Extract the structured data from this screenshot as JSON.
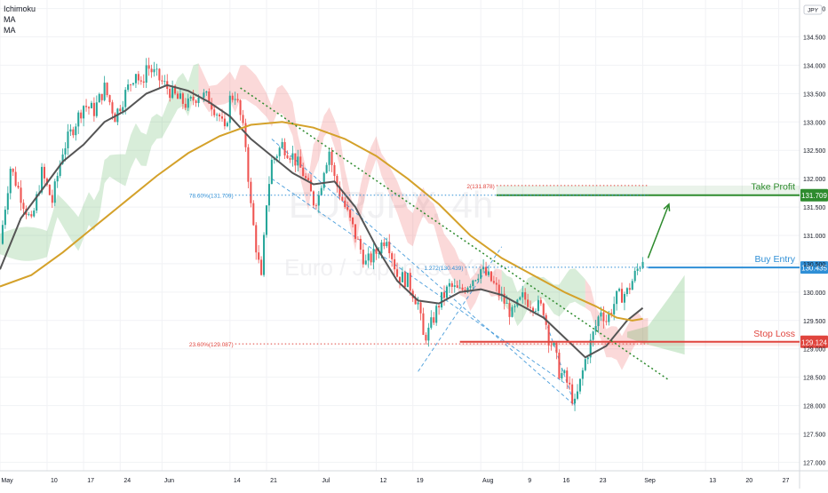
{
  "indicators": [
    "Ichimoku",
    "MA",
    "MA"
  ],
  "currency_badge": "JPY",
  "watermark": {
    "symbol": "EURJPY, 4h",
    "name": "Euro / Japanese Yen"
  },
  "chart_data": {
    "type": "candlestick",
    "y_axis": {
      "min": 126.85,
      "max": 135.15,
      "ticks": [
        127.0,
        127.5,
        128.0,
        128.5,
        129.0,
        129.5,
        130.0,
        130.5,
        131.0,
        131.5,
        132.0,
        132.5,
        133.0,
        133.5,
        134.0,
        134.5,
        135.0
      ],
      "tick_labels": [
        "127.000",
        "127.500",
        "128.000",
        "128.500",
        "129.000",
        "129.500",
        "130.000",
        "130.500",
        "131.000",
        "131.500",
        "132.000",
        "132.500",
        "133.000",
        "133.500",
        "134.000",
        "134.500",
        "135.000"
      ]
    },
    "x_axis": {
      "range_days": [
        0,
        153
      ],
      "ticks": [
        {
          "day": 0,
          "label": "May"
        },
        {
          "day": 9,
          "label": "10"
        },
        {
          "day": 16,
          "label": "17"
        },
        {
          "day": 23,
          "label": "24"
        },
        {
          "day": 31,
          "label": "Jun"
        },
        {
          "day": 44,
          "label": "14"
        },
        {
          "day": 51,
          "label": "21"
        },
        {
          "day": 61,
          "label": "Jul"
        },
        {
          "day": 72,
          "label": "12"
        },
        {
          "day": 79,
          "label": "19"
        },
        {
          "day": 92,
          "label": "Aug"
        },
        {
          "day": 100,
          "label": "9"
        },
        {
          "day": 107,
          "label": "16"
        },
        {
          "day": 114,
          "label": "23"
        },
        {
          "day": 123,
          "label": "Sep"
        },
        {
          "day": 135,
          "label": "13"
        },
        {
          "day": 142,
          "label": "20"
        },
        {
          "day": 149,
          "label": "27"
        }
      ]
    },
    "price_path": [
      [
        0,
        130.85
      ],
      [
        2,
        132.2
      ],
      [
        4,
        131.7
      ],
      [
        6,
        131.2
      ],
      [
        8,
        132.1
      ],
      [
        10,
        131.6
      ],
      [
        12,
        132.5
      ],
      [
        14,
        132.9
      ],
      [
        16,
        133.3
      ],
      [
        18,
        133.2
      ],
      [
        20,
        133.6
      ],
      [
        22,
        133.1
      ],
      [
        24,
        133.5
      ],
      [
        26,
        133.9
      ],
      [
        27,
        133.6
      ],
      [
        28,
        134.0
      ],
      [
        30,
        133.8
      ],
      [
        32,
        133.6
      ],
      [
        34,
        133.4
      ],
      [
        36,
        133.3
      ],
      [
        38,
        133.5
      ],
      [
        40,
        133.4
      ],
      [
        42,
        133.1
      ],
      [
        43,
        132.8
      ],
      [
        44,
        133.4
      ],
      [
        45,
        133.5
      ],
      [
        46,
        133.1
      ],
      [
        47,
        132.6
      ],
      [
        48,
        131.5
      ],
      [
        49,
        130.8
      ],
      [
        50,
        130.2
      ],
      [
        51,
        131.6
      ],
      [
        52,
        132.3
      ],
      [
        54,
        132.6
      ],
      [
        56,
        132.4
      ],
      [
        58,
        132.1
      ],
      [
        60,
        131.6
      ],
      [
        61,
        131.7
      ],
      [
        62,
        132.2
      ],
      [
        63,
        132.5
      ],
      [
        64,
        132.0
      ],
      [
        66,
        131.5
      ],
      [
        68,
        131.0
      ],
      [
        70,
        130.5
      ],
      [
        72,
        130.7
      ],
      [
        74,
        131.0
      ],
      [
        76,
        130.3
      ],
      [
        78,
        130.2
      ],
      [
        80,
        129.8
      ],
      [
        81,
        129.2
      ],
      [
        82,
        129.3
      ],
      [
        84,
        129.8
      ],
      [
        86,
        130.1
      ],
      [
        88,
        130.0
      ],
      [
        90,
        130.2
      ],
      [
        92,
        130.4
      ],
      [
        94,
        130.2
      ],
      [
        96,
        129.9
      ],
      [
        98,
        129.6
      ],
      [
        100,
        129.9
      ],
      [
        102,
        129.8
      ],
      [
        104,
        129.7
      ],
      [
        105,
        129.2
      ],
      [
        106,
        129.0
      ],
      [
        107,
        128.6
      ],
      [
        108,
        128.5
      ],
      [
        109,
        128.3
      ],
      [
        110,
        128.0
      ],
      [
        111,
        128.4
      ],
      [
        112,
        128.8
      ],
      [
        113,
        129.1
      ],
      [
        114,
        129.4
      ],
      [
        115,
        129.7
      ],
      [
        116,
        129.5
      ],
      [
        118,
        129.9
      ],
      [
        120,
        130.0
      ],
      [
        121,
        130.2
      ],
      [
        122,
        130.4
      ],
      [
        123,
        130.6
      ]
    ],
    "moving_averages": [
      {
        "name": "MA",
        "color": "#555555",
        "path": [
          [
            0,
            130.4
          ],
          [
            4,
            131.3
          ],
          [
            8,
            131.8
          ],
          [
            12,
            132.3
          ],
          [
            16,
            132.6
          ],
          [
            20,
            133.0
          ],
          [
            24,
            133.2
          ],
          [
            28,
            133.5
          ],
          [
            32,
            133.65
          ],
          [
            36,
            133.55
          ],
          [
            40,
            133.35
          ],
          [
            44,
            133.1
          ],
          [
            48,
            132.7
          ],
          [
            52,
            132.4
          ],
          [
            56,
            132.1
          ],
          [
            60,
            131.9
          ],
          [
            64,
            131.95
          ],
          [
            68,
            131.5
          ],
          [
            72,
            130.8
          ],
          [
            76,
            130.2
          ],
          [
            80,
            129.85
          ],
          [
            84,
            129.8
          ],
          [
            88,
            130.0
          ],
          [
            92,
            130.05
          ],
          [
            96,
            129.95
          ],
          [
            100,
            129.75
          ],
          [
            104,
            129.55
          ],
          [
            108,
            129.2
          ],
          [
            112,
            128.85
          ],
          [
            116,
            129.05
          ],
          [
            120,
            129.5
          ],
          [
            123,
            129.72
          ]
        ]
      },
      {
        "name": "MA",
        "color": "#d4a12a",
        "path": [
          [
            0,
            130.1
          ],
          [
            6,
            130.3
          ],
          [
            12,
            130.7
          ],
          [
            18,
            131.15
          ],
          [
            24,
            131.6
          ],
          [
            30,
            132.05
          ],
          [
            36,
            132.45
          ],
          [
            42,
            132.75
          ],
          [
            48,
            132.95
          ],
          [
            54,
            133.0
          ],
          [
            60,
            132.9
          ],
          [
            66,
            132.7
          ],
          [
            72,
            132.4
          ],
          [
            78,
            132.0
          ],
          [
            84,
            131.55
          ],
          [
            90,
            131.0
          ],
          [
            96,
            130.6
          ],
          [
            102,
            130.3
          ],
          [
            108,
            130.0
          ],
          [
            114,
            129.75
          ],
          [
            118,
            129.55
          ],
          [
            121,
            129.5
          ],
          [
            123,
            129.53
          ]
        ]
      }
    ],
    "levels": [
      {
        "label": "Take Profit",
        "value": 131.709,
        "tag": "131.709",
        "color": "#2e8b2e",
        "text_color": "#2e8b2e"
      },
      {
        "label": "Buy Entry",
        "value": 130.435,
        "tag": "130.435",
        "color": "#2f8fd6",
        "text_color": "#2f8fd6"
      },
      {
        "label": "Stop Loss",
        "value": 129.124,
        "tag": "129.124",
        "color": "#e0453e",
        "text_color": "#e0453e"
      }
    ],
    "fib_labels": [
      {
        "text": "2(131.878)",
        "day": 95,
        "value": 131.878,
        "color": "#e0453e"
      },
      {
        "text": "78.60%(131.709)",
        "day": 45,
        "value": 131.709,
        "color": "#2f8fd6"
      },
      {
        "text": "1.272(130.439)",
        "day": 89,
        "value": 130.439,
        "color": "#2f8fd6"
      },
      {
        "text": "23.60%(129.087)",
        "day": 45,
        "value": 129.087,
        "color": "#e0453e"
      }
    ],
    "trendline": {
      "from": [
        46,
        133.6
      ],
      "to": [
        128,
        128.45
      ],
      "color": "#2e8b2e"
    },
    "projection_arrow": {
      "from": [
        124,
        130.6
      ],
      "to": [
        128,
        131.55
      ],
      "color": "#2e8b2e"
    }
  }
}
